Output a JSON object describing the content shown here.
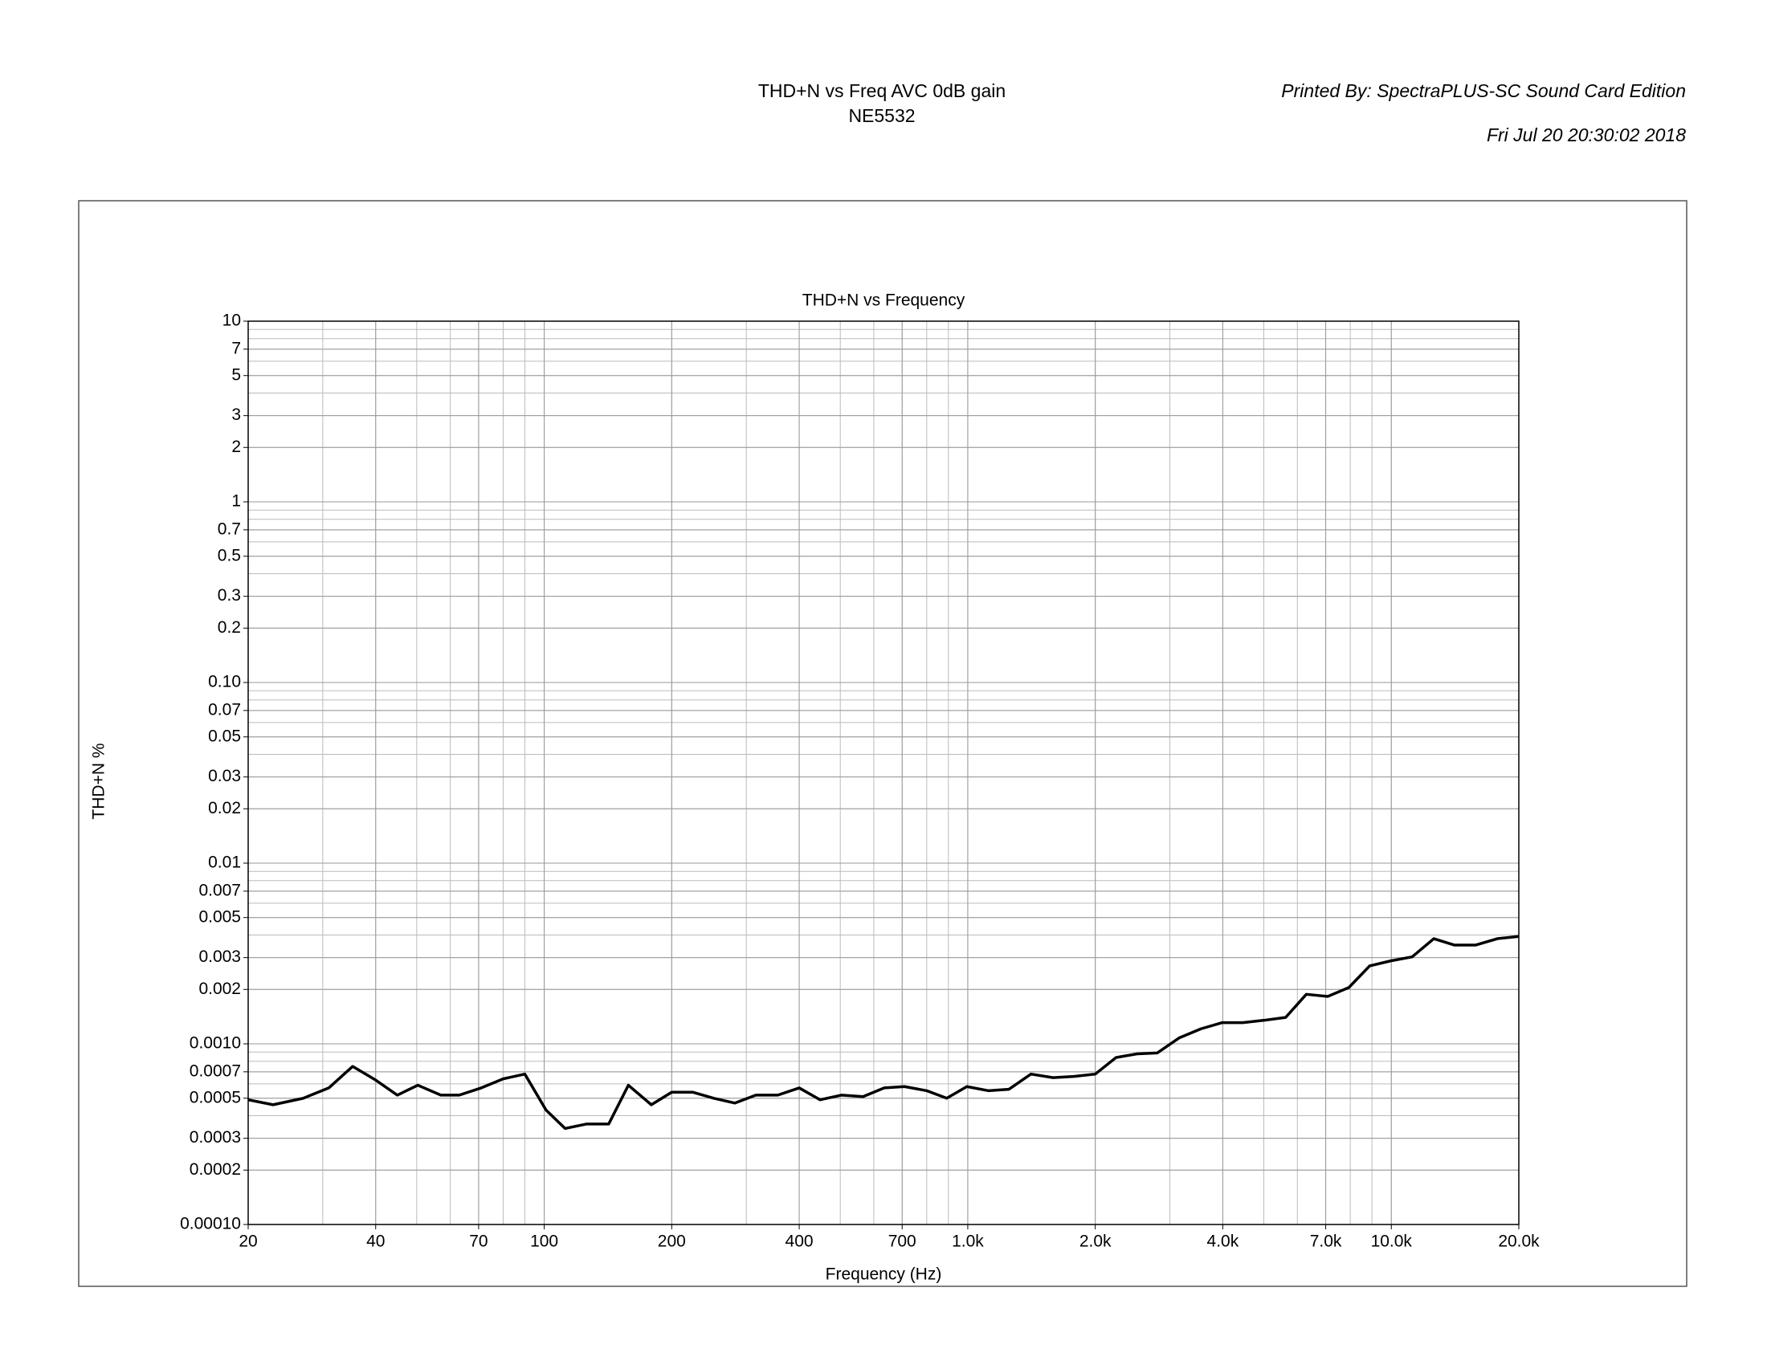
{
  "header": {
    "title": "THD+N vs Freq AVC 0dB gain",
    "subtitle": "NE5532",
    "printed_by": "Printed By: SpectraPLUS-SC Sound Card Edition",
    "date": "Fri Jul 20 20:30:02 2018"
  },
  "chart_data": {
    "type": "line",
    "title": "THD+N vs Frequency",
    "x_label": "Frequency (Hz)",
    "y_label": "THD+N %",
    "x_scale": "log",
    "y_scale": "log",
    "grid": true,
    "minor_grid": true,
    "xlim": [
      20,
      20000
    ],
    "ylim": [
      0.0001,
      10
    ],
    "xticks": [
      20,
      40,
      70,
      100,
      200,
      400,
      700,
      {
        "value": 1000,
        "label": "1.0k"
      },
      {
        "value": 2000,
        "label": "2.0k"
      },
      {
        "value": 4000,
        "label": "4.0k"
      },
      {
        "value": 7000,
        "label": "7.0k"
      },
      {
        "value": 10000,
        "label": "10.0k"
      },
      {
        "value": 20000,
        "label": "20.0k"
      }
    ],
    "yticks": [
      10,
      7,
      5,
      3,
      2,
      1,
      0.7,
      0.5,
      0.3,
      0.2,
      {
        "value": 0.1,
        "label": "0.10"
      },
      0.07,
      0.05,
      0.03,
      0.02,
      0.01,
      0.007,
      0.005,
      0.003,
      0.002,
      {
        "value": 0.001,
        "label": "0.0010"
      },
      0.0007,
      0.0005,
      0.0003,
      0.0002,
      {
        "value": 0.0001,
        "label": "0.00010"
      }
    ],
    "x": [
      20,
      22.9,
      27,
      31,
      35.3,
      40,
      45,
      50.3,
      57,
      63,
      71,
      80,
      90,
      101,
      112,
      126,
      142,
      158,
      179,
      200,
      224,
      251,
      282,
      316,
      356,
      400,
      448,
      503,
      566,
      635,
      709,
      800,
      892,
      995,
      1120,
      1250,
      1410,
      1590,
      1780,
      2000,
      2240,
      2510,
      2800,
      3160,
      3550,
      3990,
      4460,
      5010,
      5630,
      6300,
      7080,
      7940,
      8890,
      9980,
      11200,
      12600,
      14100,
      15800,
      17800,
      20000
    ],
    "series": [
      {
        "name": "THD+N",
        "color": "#000000",
        "values": [
          0.00049,
          0.00046,
          0.0005,
          0.00057,
          0.00075,
          0.00063,
          0.00052,
          0.00059,
          0.00052,
          0.00052,
          0.00057,
          0.00064,
          0.00068,
          0.00043,
          0.00034,
          0.00036,
          0.00036,
          0.00059,
          0.00046,
          0.00054,
          0.00054,
          0.0005,
          0.00047,
          0.00052,
          0.00052,
          0.00057,
          0.00049,
          0.00052,
          0.00051,
          0.00057,
          0.00058,
          0.00055,
          0.0005,
          0.00058,
          0.00055,
          0.00056,
          0.00068,
          0.00065,
          0.00066,
          0.00068,
          0.00084,
          0.00088,
          0.00089,
          0.00108,
          0.00121,
          0.00131,
          0.00131,
          0.00135,
          0.0014,
          0.00188,
          0.00183,
          0.00205,
          0.0027,
          0.00288,
          0.00303,
          0.00382,
          0.00352,
          0.00352,
          0.00382,
          0.00393
        ]
      }
    ]
  }
}
